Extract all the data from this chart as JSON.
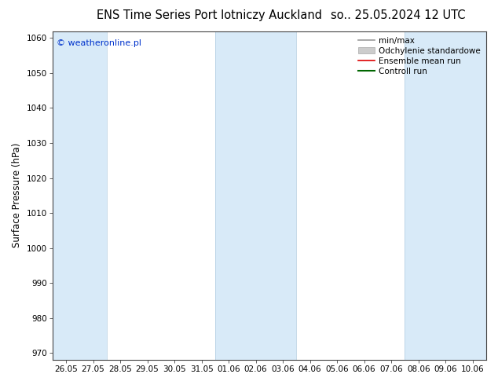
{
  "title_left": "ENS Time Series Port lotniczy Auckland",
  "title_right": "so.. 25.05.2024 12 UTC",
  "ylabel": "Surface Pressure (hPa)",
  "ylim": [
    968,
    1062
  ],
  "yticks": [
    970,
    980,
    990,
    1000,
    1010,
    1020,
    1030,
    1040,
    1050,
    1060
  ],
  "xtick_labels": [
    "26.05",
    "27.05",
    "28.05",
    "29.05",
    "30.05",
    "31.05",
    "01.06",
    "02.06",
    "03.06",
    "04.06",
    "05.06",
    "06.06",
    "07.06",
    "08.06",
    "09.06",
    "10.06"
  ],
  "n_ticks": 16,
  "shaded_bands_idx": [
    {
      "xmin": 0,
      "xmax": 1
    },
    {
      "xmin": 6,
      "xmax": 8
    },
    {
      "xmin": 13,
      "xmax": 15
    }
  ],
  "band_color": "#d8eaf8",
  "background_color": "#ffffff",
  "watermark": "© weatheronline.pl",
  "watermark_color": "#0033cc",
  "legend_items": [
    {
      "label": "min/max",
      "color": "#999999",
      "lw": 1.2,
      "type": "line"
    },
    {
      "label": "Odchylenie standardowe",
      "color": "#cccccc",
      "lw": 6,
      "type": "patch"
    },
    {
      "label": "Ensemble mean run",
      "color": "#dd0000",
      "lw": 1.2,
      "type": "line"
    },
    {
      "label": "Controll run",
      "color": "#006600",
      "lw": 1.5,
      "type": "line"
    }
  ],
  "title_fontsize": 10.5,
  "tick_fontsize": 7.5,
  "ylabel_fontsize": 8.5,
  "legend_fontsize": 7.5
}
